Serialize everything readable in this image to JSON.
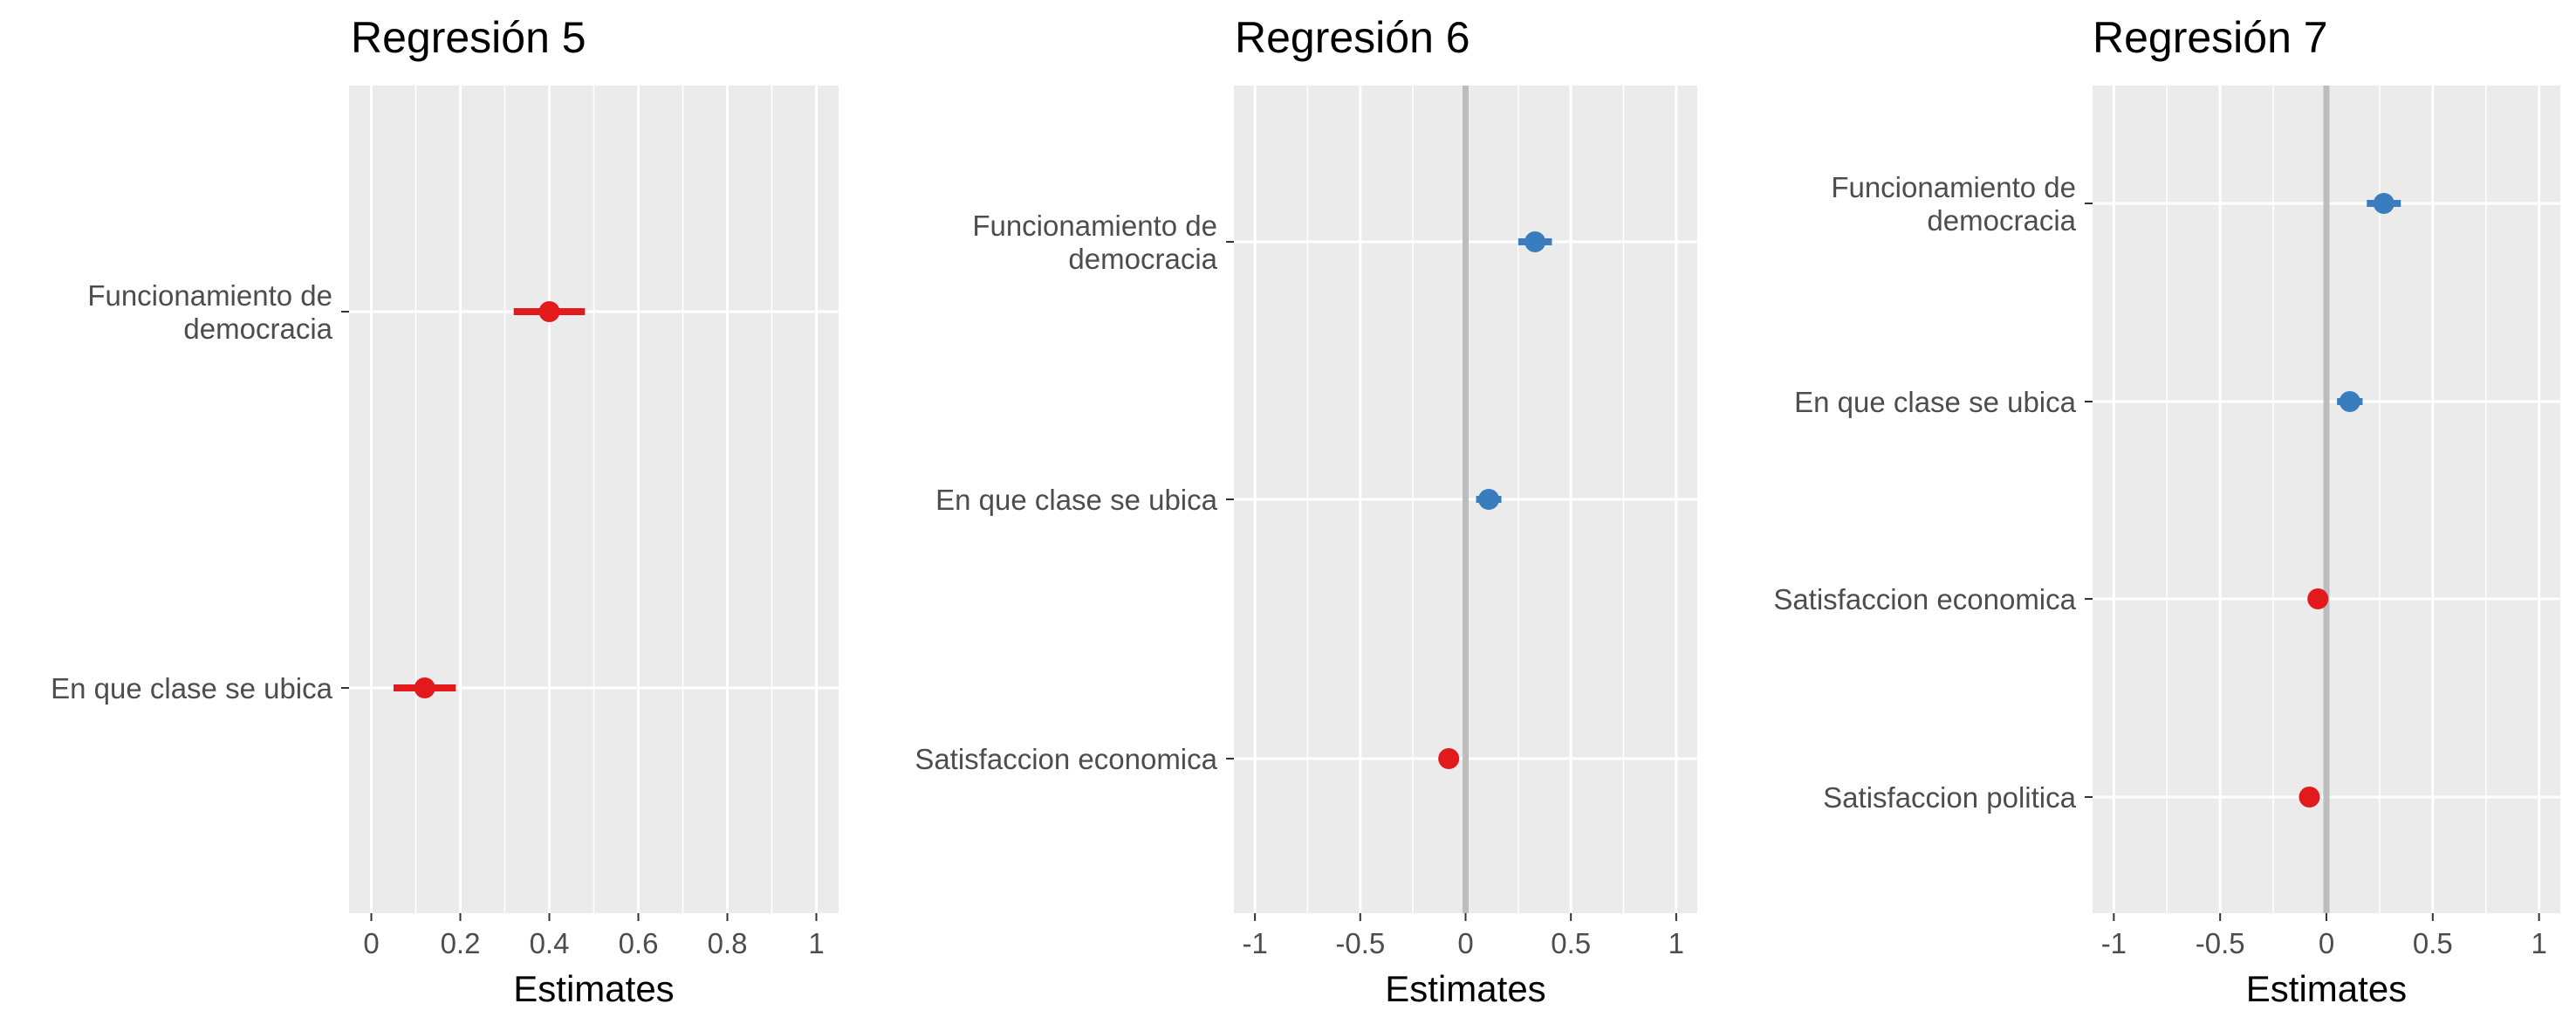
{
  "colors": {
    "panel_bg": "#ebebeb",
    "grid": "#ffffff",
    "positive": "#3a7dbf",
    "negative": "#e31a1c",
    "zero_line": "#bdbdbd",
    "text": "#4d4d4d"
  },
  "chart_data": [
    {
      "type": "scatter",
      "title": "Regresión 5",
      "xlabel": "Estimates",
      "xlim": [
        -0.05,
        1.05
      ],
      "xticks": [
        0,
        0.2,
        0.4,
        0.6,
        0.8,
        1
      ],
      "xtick_labels": [
        "0",
        "0.2",
        "0.4",
        "0.6",
        "0.8",
        "1"
      ],
      "zero_line": false,
      "grid": true,
      "terms": [
        {
          "label_lines": [
            "Funcionamiento de",
            "democracia"
          ],
          "estimate": 0.4,
          "ci": [
            0.32,
            0.48
          ],
          "color": "negative"
        },
        {
          "label_lines": [
            "En que clase se ubica"
          ],
          "estimate": 0.12,
          "ci": [
            0.05,
            0.19
          ],
          "color": "negative"
        }
      ]
    },
    {
      "type": "scatter",
      "title": "Regresión 6",
      "xlabel": "Estimates",
      "xlim": [
        -1.1,
        1.1
      ],
      "xticks": [
        -1,
        -0.5,
        0,
        0.5,
        1
      ],
      "xtick_labels": [
        "-1",
        "-0.5",
        "0",
        "0.5",
        "1"
      ],
      "zero_line": true,
      "grid": true,
      "terms": [
        {
          "label_lines": [
            "Funcionamiento de",
            "democracia"
          ],
          "estimate": 0.33,
          "ci": [
            0.25,
            0.41
          ],
          "color": "positive"
        },
        {
          "label_lines": [
            "En que clase se ubica"
          ],
          "estimate": 0.11,
          "ci": [
            0.05,
            0.17
          ],
          "color": "positive"
        },
        {
          "label_lines": [
            "Satisfaccion economica"
          ],
          "estimate": -0.08,
          "ci": [
            -0.11,
            -0.05
          ],
          "color": "negative"
        }
      ]
    },
    {
      "type": "scatter",
      "title": "Regresión 7",
      "xlabel": "Estimates",
      "xlim": [
        -1.1,
        1.1
      ],
      "xticks": [
        -1,
        -0.5,
        0,
        0.5,
        1
      ],
      "xtick_labels": [
        "-1",
        "-0.5",
        "0",
        "0.5",
        "1"
      ],
      "zero_line": true,
      "grid": true,
      "terms": [
        {
          "label_lines": [
            "Funcionamiento de",
            "democracia"
          ],
          "estimate": 0.27,
          "ci": [
            0.19,
            0.35
          ],
          "color": "positive"
        },
        {
          "label_lines": [
            "En que clase se ubica"
          ],
          "estimate": 0.11,
          "ci": [
            0.05,
            0.17
          ],
          "color": "positive"
        },
        {
          "label_lines": [
            "Satisfaccion economica"
          ],
          "estimate": -0.04,
          "ci": [
            -0.07,
            -0.01
          ],
          "color": "negative"
        },
        {
          "label_lines": [
            "Satisfaccion politica"
          ],
          "estimate": -0.08,
          "ci": [
            -0.11,
            -0.05
          ],
          "color": "negative"
        }
      ]
    }
  ]
}
